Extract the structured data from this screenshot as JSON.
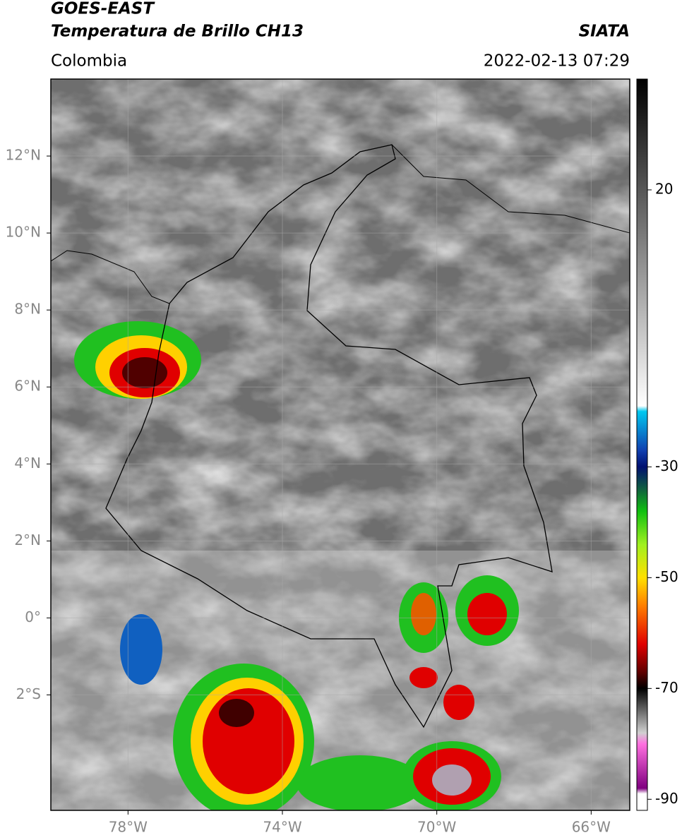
{
  "header": {
    "satellite": "GOES-EAST",
    "product": "Temperatura de Brillo CH13",
    "source": "SIATA",
    "region": "Colombia",
    "timestamp": "2022-02-13 07:29"
  },
  "map": {
    "xlim": [
      -80,
      -65
    ],
    "ylim": [
      -5,
      14
    ],
    "grid": true,
    "xticks": [
      {
        "value": -78,
        "label": "78°W"
      },
      {
        "value": -74,
        "label": "74°W"
      },
      {
        "value": -70,
        "label": "70°W"
      },
      {
        "value": -66,
        "label": "66°W"
      }
    ],
    "yticks": [
      {
        "value": 12,
        "label": "12°N"
      },
      {
        "value": 10,
        "label": "10°N"
      },
      {
        "value": 8,
        "label": "8°N"
      },
      {
        "value": 6,
        "label": "6°N"
      },
      {
        "value": 4,
        "label": "4°N"
      },
      {
        "value": 2,
        "label": "2°N"
      },
      {
        "value": 0,
        "label": "0°"
      },
      {
        "value": -2,
        "label": "2°S"
      }
    ]
  },
  "colorbar": {
    "lim": [
      -92,
      40
    ],
    "ticks": [
      20,
      -30,
      -50,
      -70,
      -90
    ],
    "colormap": [
      [
        40,
        "#000000"
      ],
      [
        -19,
        "#ffffff"
      ],
      [
        -20,
        "#00c8f0"
      ],
      [
        -27,
        "#1040b0"
      ],
      [
        -30,
        "#001070"
      ],
      [
        -34,
        "#106040"
      ],
      [
        -38,
        "#10c010"
      ],
      [
        -44,
        "#a0f020"
      ],
      [
        -50,
        "#ffe000"
      ],
      [
        -55,
        "#ff8000"
      ],
      [
        -62,
        "#e00000"
      ],
      [
        -67,
        "#600000"
      ],
      [
        -70,
        "#000000"
      ],
      [
        -78,
        "#d0d0d0"
      ],
      [
        -80,
        "#ff70e0"
      ],
      [
        -88,
        "#800080"
      ],
      [
        -89,
        "#ffffff"
      ],
      [
        -92,
        "#ffffff"
      ]
    ]
  }
}
